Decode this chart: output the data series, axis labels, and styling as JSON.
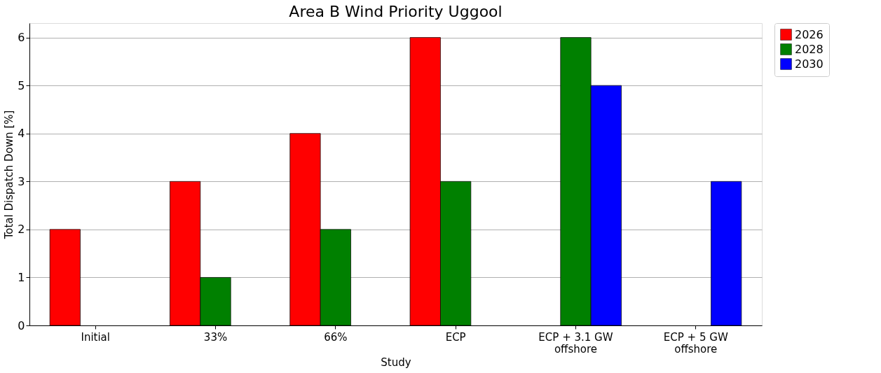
{
  "chart_data": {
    "type": "bar",
    "title": "Area B Wind Priority Uggool",
    "xlabel": "Study",
    "ylabel": "Total Dispatch Down [%]",
    "categories": [
      "Initial",
      "33%",
      "66%",
      "ECP",
      "ECP + 3.1 GW\noffshore",
      "ECP + 5 GW\noffshore"
    ],
    "series": [
      {
        "name": "2026",
        "color": "#ff0000",
        "values": [
          2,
          3,
          4,
          6,
          null,
          null
        ]
      },
      {
        "name": "2028",
        "color": "#008000",
        "values": [
          null,
          1,
          2,
          3,
          6,
          null
        ]
      },
      {
        "name": "2030",
        "color": "#0000ff",
        "values": [
          null,
          null,
          null,
          null,
          5,
          3
        ]
      }
    ],
    "ylim": [
      0,
      6.3
    ],
    "yticks": [
      0,
      1,
      2,
      3,
      4,
      5,
      6
    ],
    "grid": "y",
    "legend": "right"
  }
}
